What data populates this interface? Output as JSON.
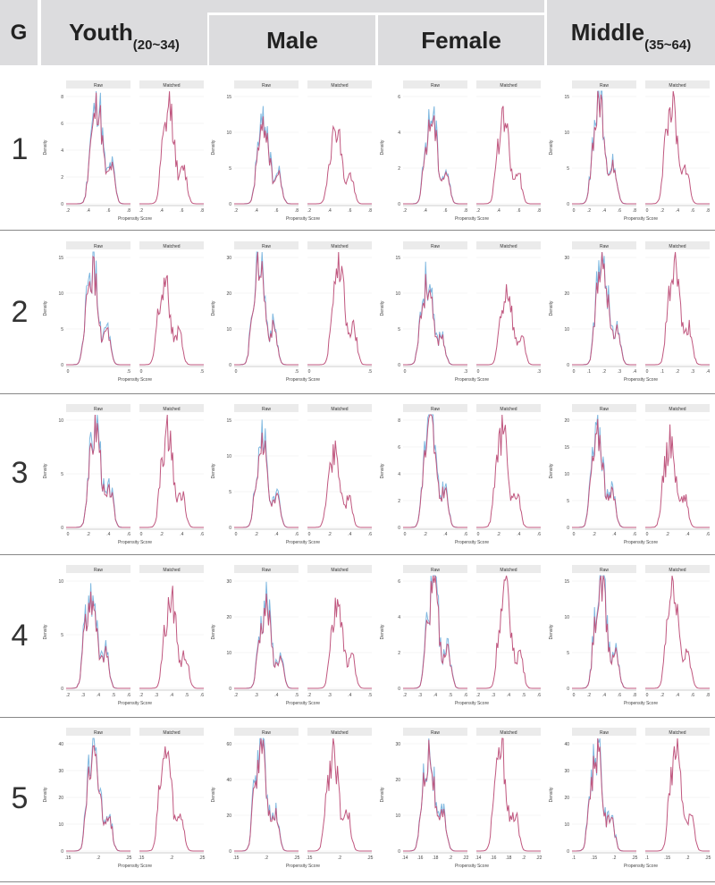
{
  "header": {
    "g_label": "G",
    "youth_label": "Youth",
    "youth_range": "(20~34)",
    "male_label": "Male",
    "female_label": "Female",
    "middle_label": "Middle",
    "middle_range": "(35~64)"
  },
  "rows": [
    {
      "label": "1"
    },
    {
      "label": "2"
    },
    {
      "label": "3"
    },
    {
      "label": "4"
    },
    {
      "label": "5"
    }
  ],
  "facet_labels": {
    "raw": "Raw",
    "matched": "Matched"
  },
  "axis_labels": {
    "x": "Propensity Score",
    "y": "Density"
  },
  "colors": {
    "raw_treated": "#7fb8e0",
    "matched": "#c0577f",
    "strip_bg": "#ebebeb",
    "header_bg": "#dcdcde"
  },
  "chart_data": [
    {
      "type": "line",
      "row": 1,
      "column": "Youth",
      "title": "Raw / Matched",
      "xlabel": "Propensity Score",
      "ylabel": "Density",
      "x_ticks": [
        ".2",
        ".4",
        ".6",
        ".8"
      ],
      "y_ticks": [
        "0",
        "2",
        "4",
        "6",
        "8"
      ],
      "ylim": [
        0,
        8.5
      ],
      "peak_raw": 8.1,
      "peak_matched": 7.8
    },
    {
      "type": "line",
      "row": 1,
      "column": "Male",
      "xlabel": "Propensity Score",
      "ylabel": "Density",
      "x_ticks": [
        ".2",
        ".4",
        ".6",
        ".8"
      ],
      "y_ticks": [
        "0",
        "5",
        "10",
        "15"
      ],
      "ylim": [
        0,
        15.5
      ],
      "peak_raw": 11.7,
      "peak_matched": 11.6
    },
    {
      "type": "line",
      "row": 1,
      "column": "Female",
      "xlabel": "Propensity Score",
      "ylabel": "Density",
      "x_ticks": [
        ".2",
        ".4",
        ".6",
        ".8"
      ],
      "y_ticks": [
        "0",
        "2",
        "4",
        "6"
      ],
      "ylim": [
        0,
        6.2
      ],
      "peak_raw": 5.2,
      "peak_matched": 5.0
    },
    {
      "type": "line",
      "row": 1,
      "column": "Middle",
      "xlabel": "Propensity Score",
      "ylabel": "Density",
      "x_ticks": [
        "0",
        ".2",
        ".4",
        ".6",
        ".8"
      ],
      "y_ticks": [
        "0",
        "5",
        "10",
        "15"
      ],
      "ylim": [
        0,
        16.5
      ],
      "peak_raw": 16.2,
      "peak_matched": 15.8
    },
    {
      "type": "line",
      "row": 2,
      "column": "Youth",
      "xlabel": "Propensity Score",
      "ylabel": "Density",
      "x_ticks": [
        "0",
        ".5"
      ],
      "y_ticks": [
        "0",
        "5",
        "10",
        "15"
      ],
      "ylim": [
        0,
        15.5
      ],
      "peak_raw": 13.5,
      "peak_matched": 13.1
    },
    {
      "type": "line",
      "row": 2,
      "column": "Male",
      "xlabel": "Propensity Score",
      "ylabel": "Density",
      "x_ticks": [
        "0",
        ".5"
      ],
      "y_ticks": [
        "0",
        "10",
        "20",
        "30"
      ],
      "ylim": [
        0,
        30.5
      ],
      "peak_raw": 29.8,
      "peak_matched": 29.5
    },
    {
      "type": "line",
      "row": 2,
      "column": "Female",
      "xlabel": "Propensity Score",
      "ylabel": "Density",
      "x_ticks": [
        "0",
        ".3"
      ],
      "y_ticks": [
        "0",
        "5",
        "10",
        "15"
      ],
      "ylim": [
        0,
        15.5
      ],
      "peak_raw": 12.0,
      "peak_matched": 11.5
    },
    {
      "type": "line",
      "row": 2,
      "column": "Middle",
      "xlabel": "Propensity Score",
      "ylabel": "Density",
      "x_ticks": [
        "0",
        ".1",
        ".2",
        ".3",
        ".4"
      ],
      "y_ticks": [
        "0",
        "10",
        "20",
        "30"
      ],
      "ylim": [
        0,
        32
      ],
      "peak_raw": 31.8,
      "peak_matched": 30.5
    },
    {
      "type": "line",
      "row": 3,
      "column": "Youth",
      "xlabel": "Propensity Score",
      "ylabel": "Density",
      "x_ticks": [
        "0",
        ".2",
        ".4",
        ".6"
      ],
      "y_ticks": [
        "0",
        "5",
        "10"
      ],
      "ylim": [
        0,
        10.2
      ],
      "peak_raw": 9.8,
      "peak_matched": 9.2
    },
    {
      "type": "line",
      "row": 3,
      "column": "Male",
      "xlabel": "Propensity Score",
      "ylabel": "Density",
      "x_ticks": [
        "0",
        ".2",
        ".4",
        ".6"
      ],
      "y_ticks": [
        "0",
        "5",
        "10",
        "15"
      ],
      "ylim": [
        0,
        15.5
      ],
      "peak_raw": 11.8,
      "peak_matched": 11.4
    },
    {
      "type": "line",
      "row": 3,
      "column": "Female",
      "xlabel": "Propensity Score",
      "ylabel": "Density",
      "x_ticks": [
        "0",
        ".2",
        ".4",
        ".6"
      ],
      "y_ticks": [
        "0",
        "2",
        "4",
        "6",
        "8"
      ],
      "ylim": [
        0,
        8.3
      ],
      "peak_raw": 8.2,
      "peak_matched": 7.7
    },
    {
      "type": "line",
      "row": 3,
      "column": "Middle",
      "xlabel": "Propensity Score",
      "ylabel": "Density",
      "x_ticks": [
        "0",
        ".2",
        ".4",
        ".6"
      ],
      "y_ticks": [
        "0",
        "5",
        "10",
        "15",
        "20"
      ],
      "ylim": [
        0,
        20.5
      ],
      "peak_raw": 18.2,
      "peak_matched": 17.0
    },
    {
      "type": "line",
      "row": 4,
      "column": "Youth",
      "xlabel": "Propensity Score",
      "ylabel": "Density",
      "x_ticks": [
        ".2",
        ".3",
        ".4",
        ".5",
        ".6"
      ],
      "y_ticks": [
        "0",
        "5",
        "10"
      ],
      "ylim": [
        0,
        10.2
      ],
      "peak_raw": 9.2,
      "peak_matched": 8.9
    },
    {
      "type": "line",
      "row": 4,
      "column": "Male",
      "xlabel": "Propensity Score",
      "ylabel": "Density",
      "x_ticks": [
        ".2",
        ".3",
        ".4",
        ".5"
      ],
      "y_ticks": [
        "0",
        "10",
        "20",
        "30"
      ],
      "ylim": [
        0,
        30.5
      ],
      "peak_raw": 23.8,
      "peak_matched": 24.5
    },
    {
      "type": "line",
      "row": 4,
      "column": "Female",
      "xlabel": "Propensity Score",
      "ylabel": "Density",
      "x_ticks": [
        ".2",
        ".3",
        ".4",
        ".5",
        ".6"
      ],
      "y_ticks": [
        "0",
        "2",
        "4",
        "6"
      ],
      "ylim": [
        0,
        6.6
      ],
      "peak_raw": 6.4,
      "peak_matched": 6.3
    },
    {
      "type": "line",
      "row": 4,
      "column": "Middle",
      "xlabel": "Propensity Score",
      "ylabel": "Density",
      "x_ticks": [
        "0",
        ".2",
        ".4",
        ".6",
        ".8"
      ],
      "y_ticks": [
        "0",
        "5",
        "10",
        "15"
      ],
      "ylim": [
        0,
        15.5
      ],
      "peak_raw": 15.0,
      "peak_matched": 15.2
    },
    {
      "type": "line",
      "row": 5,
      "column": "Youth",
      "xlabel": "Propensity Score",
      "ylabel": "Density",
      "x_ticks": [
        ".15",
        ".2",
        ".25"
      ],
      "y_ticks": [
        "0",
        "10",
        "20",
        "30",
        "40"
      ],
      "ylim": [
        0,
        42
      ],
      "peak_raw": 41,
      "peak_matched": 41
    },
    {
      "type": "line",
      "row": 5,
      "column": "Male",
      "xlabel": "Propensity Score",
      "ylabel": "Density",
      "x_ticks": [
        ".15",
        ".2",
        ".25"
      ],
      "y_ticks": [
        "0",
        "20",
        "40",
        "60"
      ],
      "ylim": [
        0,
        63
      ],
      "peak_raw": 62,
      "peak_matched": 61
    },
    {
      "type": "line",
      "row": 5,
      "column": "Female",
      "xlabel": "Propensity Score",
      "ylabel": "Density",
      "x_ticks": [
        ".14",
        ".16",
        ".18",
        ".2",
        ".22"
      ],
      "y_ticks": [
        "0",
        "10",
        "20",
        "30"
      ],
      "ylim": [
        0,
        31
      ],
      "peak_raw": 30,
      "peak_matched": 30
    },
    {
      "type": "line",
      "row": 5,
      "column": "Middle",
      "xlabel": "Propensity Score",
      "ylabel": "Density",
      "x_ticks": [
        ".1",
        ".15",
        ".2",
        ".25"
      ],
      "y_ticks": [
        "0",
        "10",
        "20",
        "30",
        "40"
      ],
      "ylim": [
        0,
        45
      ],
      "peak_raw": 43,
      "peak_matched": 43
    }
  ]
}
